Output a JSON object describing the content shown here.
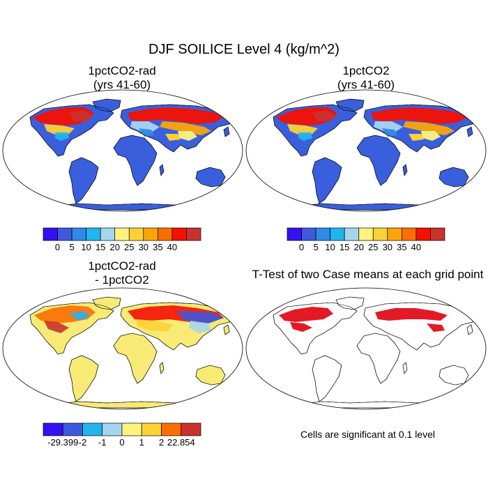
{
  "figure_title": "DJF SOILICE Level 4 (kg/m^2)",
  "colors": {
    "ocean": "#ffffff",
    "land_zero": "#3a5fdc",
    "coast": "#000000",
    "significant": "#e0000e"
  },
  "panels": [
    {
      "id": "top-left",
      "title_lines": [
        "1pctCO2-rad",
        "(yrs 41-60)"
      ],
      "type": "field",
      "land_fill": "#3a5fdc",
      "colorbar": {
        "colors": [
          "#3311f0",
          "#3d59dd",
          "#2f8ae8",
          "#22b4ee",
          "#a6d6ef",
          "#fef37e",
          "#fcd136",
          "#fba508",
          "#fb6e03",
          "#f41003",
          "#c9322d"
        ],
        "labels": [
          "0",
          "5",
          "10",
          "15",
          "20",
          "25",
          "30",
          "35",
          "40"
        ]
      }
    },
    {
      "id": "top-right",
      "title_lines": [
        "1pctCO2",
        "(yrs 41-60)"
      ],
      "type": "field",
      "land_fill": "#3a5fdc",
      "colorbar": {
        "colors": [
          "#3311f0",
          "#3d59dd",
          "#2f8ae8",
          "#22b4ee",
          "#a6d6ef",
          "#fef37e",
          "#fcd136",
          "#fba508",
          "#fb6e03",
          "#f41003",
          "#c9322d"
        ],
        "labels": [
          "0",
          "5",
          "10",
          "15",
          "20",
          "25",
          "30",
          "35",
          "40"
        ]
      }
    },
    {
      "id": "bottom-left",
      "title_lines": [
        "1pctCO2-rad",
        "- 1pctCO2"
      ],
      "type": "diff",
      "land_fill": "#f8eb75",
      "colorbar": {
        "colors": [
          "#3311f0",
          "#3d59dd",
          "#22b4ee",
          "#a6d6ef",
          "#fef37e",
          "#fcd136",
          "#fb6e03",
          "#c9322d"
        ],
        "labels": [
          "-29.399",
          "-2",
          "-1",
          "0",
          "1",
          "2",
          "22.854"
        ]
      }
    },
    {
      "id": "bottom-right",
      "title_lines": [
        "T-Test of two Case means at each grid point"
      ],
      "type": "ttest",
      "land_fill": "#ffffff",
      "note": "Cells are significant at 0.1 level"
    }
  ]
}
